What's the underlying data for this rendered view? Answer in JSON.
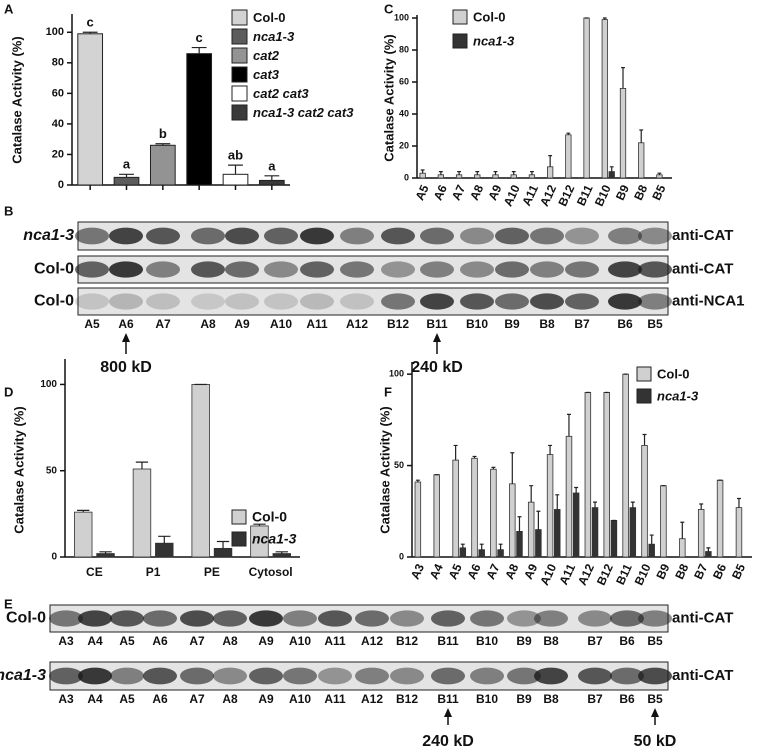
{
  "panel_labels": [
    "A",
    "B",
    "C",
    "D",
    "E",
    "F"
  ],
  "chart_data": [
    {
      "type": "bar",
      "y_label": "Catalase Activity (%)",
      "categories": [
        "Col-0",
        "nca1-3",
        "cat2",
        "cat3",
        "cat2 cat3",
        "nca1-3 cat2 cat3"
      ],
      "values": [
        99,
        5,
        26,
        86,
        7,
        3
      ],
      "errors": [
        1,
        2,
        1,
        4,
        6,
        3
      ],
      "letters": [
        "c",
        "a",
        "b",
        "c",
        "ab",
        "a"
      ],
      "colors": [
        "#d3d3d3",
        "#5c5c5c",
        "#939393",
        "#000000",
        "#ffffff",
        "#3a3a3a"
      ],
      "ylim": [
        0,
        110
      ],
      "yticks": [
        0,
        20,
        40,
        60,
        80,
        100
      ]
    },
    {
      "type": "bar",
      "y_label": "Catalase Activity (%)",
      "categories": [
        "A5",
        "A6",
        "A7",
        "A8",
        "A9",
        "A10",
        "A11",
        "A12",
        "B12",
        "B11",
        "B10",
        "B9",
        "B8",
        "B5"
      ],
      "series": [
        {
          "name": "Col-0",
          "color": "#d0d0d0",
          "values": [
            3,
            2,
            2,
            2,
            2,
            2,
            2,
            7,
            27,
            100,
            99,
            56,
            22,
            2
          ],
          "errors": [
            2,
            2,
            2,
            2,
            2,
            2,
            2,
            7,
            1,
            0,
            1,
            13,
            8,
            1
          ]
        },
        {
          "name": "nca1-3",
          "color": "#333333",
          "values": [
            0,
            0,
            0,
            0,
            0,
            0,
            0,
            0,
            0,
            0,
            4,
            0,
            0,
            0
          ],
          "errors": [
            0,
            0,
            0,
            0,
            0,
            0,
            0,
            0,
            0,
            0,
            3,
            0,
            0,
            0
          ]
        }
      ],
      "ylim": [
        0,
        100
      ],
      "yticks": [
        0,
        20,
        40,
        60,
        80,
        100
      ]
    },
    {
      "type": "bar",
      "y_label": "Catalase Activity (%)",
      "categories": [
        "CE",
        "P1",
        "PE",
        "Cytosol"
      ],
      "series": [
        {
          "name": "Col-0",
          "color": "#d0d0d0",
          "values": [
            26,
            51,
            100,
            18
          ],
          "errors": [
            1,
            4,
            0,
            1
          ]
        },
        {
          "name": "nca1-3",
          "color": "#333333",
          "values": [
            2,
            8,
            5,
            2
          ],
          "errors": [
            1,
            4,
            4,
            1
          ]
        }
      ],
      "ylim": [
        0,
        113
      ],
      "yticks": [
        0,
        50,
        100
      ]
    },
    {
      "type": "bar",
      "y_label": "Catalase Activity (%)",
      "categories": [
        "A3",
        "A4",
        "A5",
        "A6",
        "A7",
        "A8",
        "A9",
        "A10",
        "A11",
        "A12",
        "B12",
        "B11",
        "B10",
        "B9",
        "B8",
        "B7",
        "B6",
        "B5"
      ],
      "series": [
        {
          "name": "Col-0",
          "color": "#d0d0d0",
          "values": [
            41,
            45,
            53,
            54,
            48,
            40,
            30,
            56,
            66,
            90,
            90,
            100,
            61,
            39,
            10,
            26,
            42,
            27
          ],
          "errors": [
            1,
            0,
            8,
            1,
            1,
            17,
            9,
            5,
            12,
            0,
            0,
            0,
            6,
            0,
            9,
            3,
            0,
            5
          ]
        },
        {
          "name": "nca1-3",
          "color": "#333333",
          "values": [
            0,
            0,
            5,
            4,
            4,
            14,
            15,
            26,
            35,
            27,
            20,
            27,
            7,
            0,
            0,
            3,
            0,
            0
          ],
          "errors": [
            0,
            0,
            2,
            3,
            3,
            8,
            10,
            8,
            3,
            3,
            0,
            3,
            5,
            0,
            0,
            2,
            0,
            0
          ]
        }
      ],
      "ylim": [
        0,
        105
      ],
      "yticks": [
        0,
        50,
        100
      ]
    }
  ],
  "blots": [
    {
      "rows": [
        {
          "label": "nca1-3",
          "antibody": "anti-CAT"
        },
        {
          "label": "Col-0",
          "antibody": "anti-CAT"
        },
        {
          "label": "Col-0",
          "antibody": "anti-NCA1"
        }
      ],
      "lanes": [
        "A5",
        "A6",
        "A7",
        "A8",
        "A9",
        "A10",
        "A11",
        "A12",
        "B12",
        "B11",
        "B10",
        "B9",
        "B8",
        "B7",
        "B6",
        "B5"
      ],
      "markers": [
        "800 kD",
        "240 kD"
      ]
    },
    {
      "rows": [
        {
          "label": "Col-0",
          "antibody": "anti-CAT"
        },
        {
          "label": "nca1-3",
          "antibody": "anti-CAT"
        }
      ],
      "lanes": [
        "A3",
        "A4",
        "A5",
        "A6",
        "A7",
        "A8",
        "A9",
        "A10",
        "A11",
        "A12",
        "B12",
        "B11",
        "B10",
        "B9",
        "B8",
        "B7",
        "B6",
        "B5"
      ],
      "markers": [
        "240 kD",
        "50 kD"
      ]
    }
  ]
}
